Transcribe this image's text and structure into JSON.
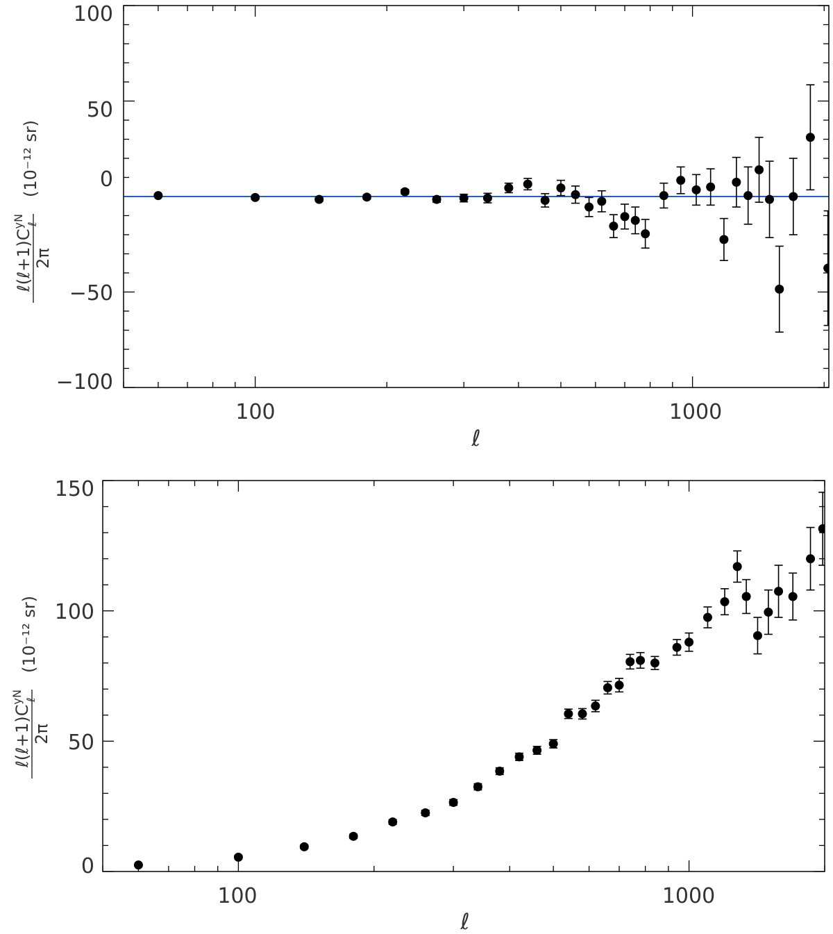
{
  "chart_data": [
    {
      "type": "scatter",
      "title": "",
      "xlabel": "ℓ",
      "xscale": "log",
      "xlim": [
        50,
        2050
      ],
      "ylim": [
        -100,
        100
      ],
      "yticks": [
        -100,
        -50,
        0,
        50,
        100
      ],
      "xticks": [
        100,
        1000
      ],
      "xtick_labels": [
        "100",
        "1000"
      ],
      "ytick_labels": [
        "−100",
        "−50",
        "0",
        "50",
        "100"
      ],
      "ylabel": {
        "numerator": "ℓ(ℓ+1)C",
        "superscript": "yN",
        "subscript": "ℓ",
        "denominator": "2π",
        "units": "(10⁻¹² sr)"
      },
      "reference_line": {
        "y": 0,
        "color": "#1f5fd6"
      },
      "marker_color": "#000000",
      "points": [
        {
          "x": 60,
          "y": 0.5,
          "err": 0.8
        },
        {
          "x": 100,
          "y": -0.5,
          "err": 0.8
        },
        {
          "x": 140,
          "y": -1.5,
          "err": 1.0
        },
        {
          "x": 180,
          "y": -0.3,
          "err": 1.0
        },
        {
          "x": 220,
          "y": 2.5,
          "err": 1.2
        },
        {
          "x": 260,
          "y": -1.5,
          "err": 1.5
        },
        {
          "x": 300,
          "y": -0.8,
          "err": 2.0
        },
        {
          "x": 340,
          "y": -0.8,
          "err": 2.5
        },
        {
          "x": 380,
          "y": 4.5,
          "err": 2.5
        },
        {
          "x": 420,
          "y": 6.5,
          "err": 3.0
        },
        {
          "x": 460,
          "y": -2.0,
          "err": 3.5
        },
        {
          "x": 500,
          "y": 4.5,
          "err": 4.0
        },
        {
          "x": 540,
          "y": 1.0,
          "err": 4.5
        },
        {
          "x": 580,
          "y": -5.5,
          "err": 5.0
        },
        {
          "x": 620,
          "y": -2.5,
          "err": 5.5
        },
        {
          "x": 660,
          "y": -15.5,
          "err": 6.0
        },
        {
          "x": 700,
          "y": -10.5,
          "err": 6.5
        },
        {
          "x": 740,
          "y": -12.5,
          "err": 7.0
        },
        {
          "x": 780,
          "y": -19.5,
          "err": 7.5
        },
        {
          "x": 860,
          "y": 0.5,
          "err": 6.5
        },
        {
          "x": 940,
          "y": 8.5,
          "err": 7.0
        },
        {
          "x": 1020,
          "y": 3.5,
          "err": 8.0
        },
        {
          "x": 1100,
          "y": 5.0,
          "err": 9.5
        },
        {
          "x": 1180,
          "y": -22.5,
          "err": 11.0
        },
        {
          "x": 1260,
          "y": 7.5,
          "err": 13.0
        },
        {
          "x": 1340,
          "y": 0.5,
          "err": 15.0
        },
        {
          "x": 1420,
          "y": 14.0,
          "err": 17.0
        },
        {
          "x": 1500,
          "y": -1.5,
          "err": 20.0
        },
        {
          "x": 1580,
          "y": -48.5,
          "err": 22.5
        },
        {
          "x": 1700,
          "y": 0.0,
          "err": 20.0
        },
        {
          "x": 1860,
          "y": 31.0,
          "err": 27.5
        },
        {
          "x": 2040,
          "y": -37.5,
          "err": 30.0
        }
      ]
    },
    {
      "type": "scatter",
      "title": "",
      "xlabel": "ℓ",
      "xscale": "log",
      "xlim": [
        50,
        2000
      ],
      "ylim": [
        0,
        150
      ],
      "yticks": [
        0,
        50,
        100,
        150
      ],
      "xticks": [
        100,
        1000
      ],
      "xtick_labels": [
        "100",
        "1000"
      ],
      "ytick_labels": [
        "0",
        "50",
        "100",
        "150"
      ],
      "ylabel": {
        "numerator": "ℓ(ℓ+1)C",
        "superscript": "yN",
        "subscript": "ℓ",
        "denominator": "2π",
        "units": "(10⁻¹² sr)"
      },
      "marker_color": "#000000",
      "points": [
        {
          "x": 60,
          "y": 2.5,
          "err": 0.5
        },
        {
          "x": 100,
          "y": 5.5,
          "err": 0.6
        },
        {
          "x": 140,
          "y": 9.5,
          "err": 0.7
        },
        {
          "x": 180,
          "y": 13.5,
          "err": 0.8
        },
        {
          "x": 220,
          "y": 19.0,
          "err": 0.9
        },
        {
          "x": 260,
          "y": 22.5,
          "err": 1.0
        },
        {
          "x": 300,
          "y": 26.5,
          "err": 1.1
        },
        {
          "x": 340,
          "y": 32.5,
          "err": 1.2
        },
        {
          "x": 380,
          "y": 38.5,
          "err": 1.3
        },
        {
          "x": 420,
          "y": 44.0,
          "err": 1.4
        },
        {
          "x": 460,
          "y": 46.5,
          "err": 1.5
        },
        {
          "x": 500,
          "y": 49.0,
          "err": 1.6
        },
        {
          "x": 540,
          "y": 60.5,
          "err": 1.8
        },
        {
          "x": 580,
          "y": 60.5,
          "err": 2.0
        },
        {
          "x": 620,
          "y": 63.5,
          "err": 2.2
        },
        {
          "x": 660,
          "y": 70.5,
          "err": 2.4
        },
        {
          "x": 700,
          "y": 71.5,
          "err": 2.6
        },
        {
          "x": 740,
          "y": 80.5,
          "err": 2.8
        },
        {
          "x": 780,
          "y": 81.0,
          "err": 3.0
        },
        {
          "x": 840,
          "y": 80.0,
          "err": 2.5
        },
        {
          "x": 940,
          "y": 86.0,
          "err": 3.0
        },
        {
          "x": 1000,
          "y": 88.0,
          "err": 3.5
        },
        {
          "x": 1100,
          "y": 97.5,
          "err": 4.0
        },
        {
          "x": 1200,
          "y": 103.5,
          "err": 5.0
        },
        {
          "x": 1280,
          "y": 117.0,
          "err": 6.0
        },
        {
          "x": 1340,
          "y": 105.5,
          "err": 6.5
        },
        {
          "x": 1420,
          "y": 90.5,
          "err": 7.0
        },
        {
          "x": 1500,
          "y": 99.5,
          "err": 8.5
        },
        {
          "x": 1580,
          "y": 107.5,
          "err": 10.0
        },
        {
          "x": 1700,
          "y": 105.5,
          "err": 9.0
        },
        {
          "x": 1860,
          "y": 120.0,
          "err": 12.0
        },
        {
          "x": 1980,
          "y": 131.5,
          "err": 14.0
        }
      ]
    }
  ]
}
